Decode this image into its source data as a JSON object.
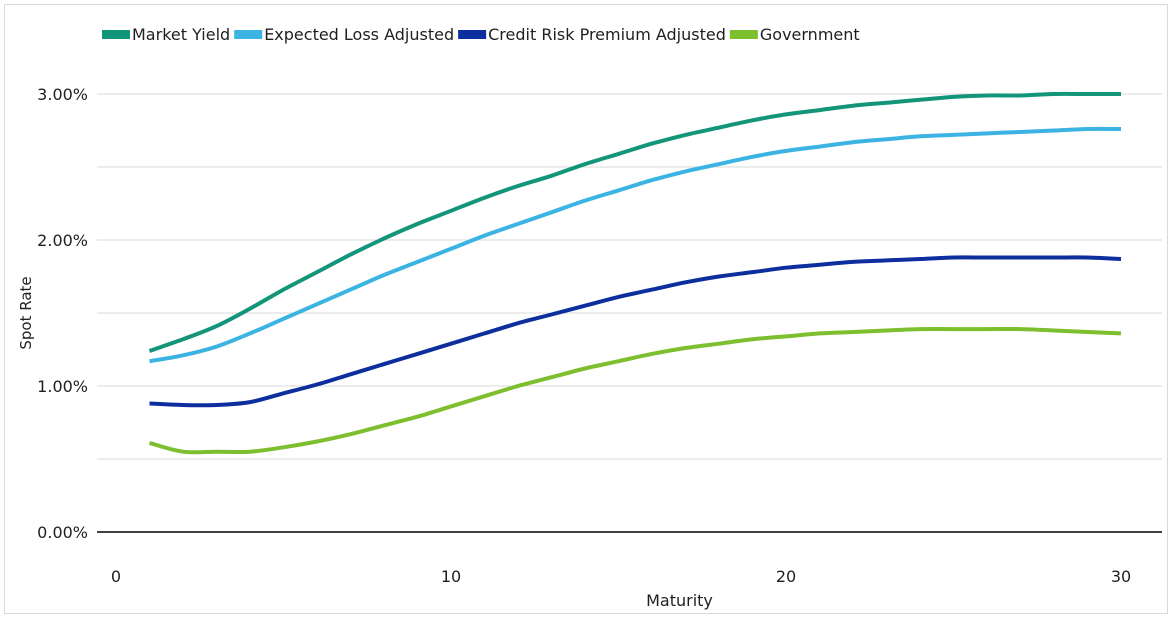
{
  "chart_data": {
    "type": "line",
    "title": "",
    "xlabel": "Maturity",
    "ylabel": "Spot Rate",
    "xlim": [
      0,
      30
    ],
    "ylim": [
      0,
      3
    ],
    "x_ticks": [
      0,
      10,
      20,
      30
    ],
    "x_tick_labels": [
      "0",
      "10",
      "20",
      "30"
    ],
    "y_ticks": [
      0,
      1,
      2,
      3
    ],
    "y_tick_labels": [
      "0.00%",
      "1.00%",
      "2.00%",
      "3.00%"
    ],
    "grid": {
      "horizontal": true,
      "minor_horizontal": true,
      "vertical": false
    },
    "legend": {
      "position": "top-left"
    },
    "x": [
      1,
      2,
      3,
      4,
      5,
      6,
      7,
      8,
      9,
      10,
      11,
      12,
      13,
      14,
      15,
      16,
      17,
      18,
      19,
      20,
      21,
      22,
      23,
      24,
      25,
      26,
      27,
      28,
      29,
      30
    ],
    "series": [
      {
        "name": "Market Yield",
        "color": "#13957a",
        "values": [
          1.24,
          1.32,
          1.41,
          1.53,
          1.66,
          1.78,
          1.9,
          2.01,
          2.11,
          2.2,
          2.29,
          2.37,
          2.44,
          2.52,
          2.59,
          2.66,
          2.72,
          2.77,
          2.82,
          2.86,
          2.89,
          2.92,
          2.94,
          2.96,
          2.98,
          2.99,
          2.99,
          3.0,
          3.0,
          3.0
        ]
      },
      {
        "name": "Expected Loss Adjusted",
        "color": "#3bb3e3",
        "values": [
          1.17,
          1.21,
          1.27,
          1.36,
          1.46,
          1.56,
          1.66,
          1.76,
          1.85,
          1.94,
          2.03,
          2.11,
          2.19,
          2.27,
          2.34,
          2.41,
          2.47,
          2.52,
          2.57,
          2.61,
          2.64,
          2.67,
          2.69,
          2.71,
          2.72,
          2.73,
          2.74,
          2.75,
          2.76,
          2.76
        ]
      },
      {
        "name": "Credit Risk Premium Adjusted",
        "color": "#0d2f9e",
        "values": [
          0.88,
          0.87,
          0.87,
          0.89,
          0.95,
          1.01,
          1.08,
          1.15,
          1.22,
          1.29,
          1.36,
          1.43,
          1.49,
          1.55,
          1.61,
          1.66,
          1.71,
          1.75,
          1.78,
          1.81,
          1.83,
          1.85,
          1.86,
          1.87,
          1.88,
          1.88,
          1.88,
          1.88,
          1.88,
          1.87
        ]
      },
      {
        "name": "Government",
        "color": "#7dbf2e",
        "values": [
          0.61,
          0.55,
          0.55,
          0.55,
          0.58,
          0.62,
          0.67,
          0.73,
          0.79,
          0.86,
          0.93,
          1.0,
          1.06,
          1.12,
          1.17,
          1.22,
          1.26,
          1.29,
          1.32,
          1.34,
          1.36,
          1.37,
          1.38,
          1.39,
          1.39,
          1.39,
          1.39,
          1.38,
          1.37,
          1.36
        ]
      }
    ]
  }
}
